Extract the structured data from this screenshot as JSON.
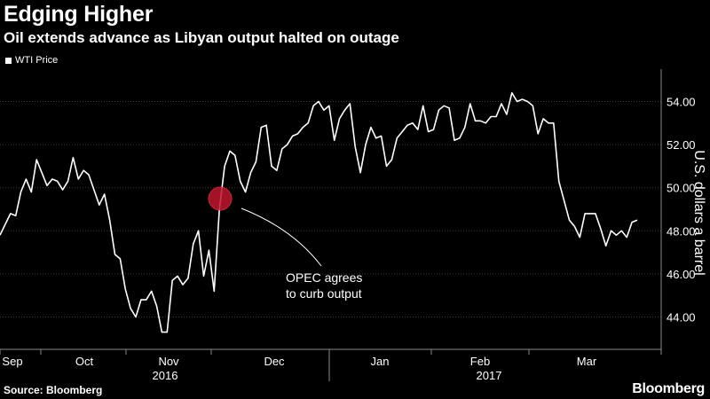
{
  "header": {
    "title": "Edging Higher",
    "subtitle": "Oil extends advance as Libyan output halted on outage"
  },
  "legend": {
    "label": "WTI Price"
  },
  "footer": {
    "source": "Source: Bloomberg",
    "brand": "Bloomberg"
  },
  "annotation": {
    "line1": "OPEC agrees",
    "line2": "to curb output",
    "highlight_color": "#c0162e"
  },
  "chart_data": {
    "type": "line",
    "title": "Edging Higher",
    "subtitle": "Oil extends advance as Libyan output halted on outage",
    "ylabel": "U.S. dollars a barrel",
    "ylim": [
      42.5,
      55.5
    ],
    "yticks": [
      44,
      46,
      48,
      50,
      52,
      54
    ],
    "ytick_labels": [
      "44.00",
      "46.00",
      "48.00",
      "50.00",
      "52.00",
      "54.00"
    ],
    "x_ticks": [
      "Sep",
      "Oct",
      "Nov",
      "Dec",
      "Jan",
      "Feb",
      "Mar"
    ],
    "years": [
      "2016",
      "2017"
    ],
    "grid": true,
    "line_color": "#ffffff",
    "series": [
      {
        "name": "WTI Price",
        "values": [
          47.8,
          48.3,
          48.8,
          48.7,
          49.8,
          50.4,
          49.8,
          51.3,
          50.7,
          50.1,
          50.4,
          50.3,
          49.9,
          50.3,
          51.4,
          50.4,
          50.8,
          50.6,
          49.9,
          49.2,
          49.7,
          48.5,
          46.9,
          46.7,
          45.3,
          44.4,
          44.0,
          44.8,
          44.8,
          45.2,
          44.5,
          43.3,
          43.3,
          45.7,
          45.9,
          45.5,
          45.8,
          47.4,
          48.0,
          45.9,
          47.1,
          45.2,
          49.0,
          51.0,
          51.7,
          51.5,
          50.3,
          49.8,
          50.7,
          51.2,
          52.8,
          52.9,
          51.0,
          50.8,
          51.8,
          52.0,
          52.4,
          52.5,
          52.8,
          53.0,
          53.8,
          54.0,
          53.6,
          53.8,
          52.2,
          53.2,
          53.6,
          53.9,
          51.9,
          50.7,
          52.0,
          52.8,
          52.3,
          52.4,
          51.0,
          51.3,
          52.3,
          52.6,
          52.9,
          53.0,
          52.7,
          53.8,
          52.6,
          52.7,
          53.6,
          53.8,
          53.7,
          52.2,
          52.3,
          52.8,
          53.9,
          53.1,
          53.1,
          53.0,
          53.3,
          53.3,
          53.9,
          53.4,
          54.4,
          54.0,
          54.1,
          54.0,
          53.8,
          52.5,
          53.2,
          53.0,
          53.0,
          50.3,
          49.4,
          48.5,
          48.2,
          47.7,
          48.8,
          48.8,
          48.8,
          48.1,
          47.3,
          48.0,
          47.8,
          48.0,
          47.7,
          48.4,
          48.5
        ]
      }
    ]
  }
}
